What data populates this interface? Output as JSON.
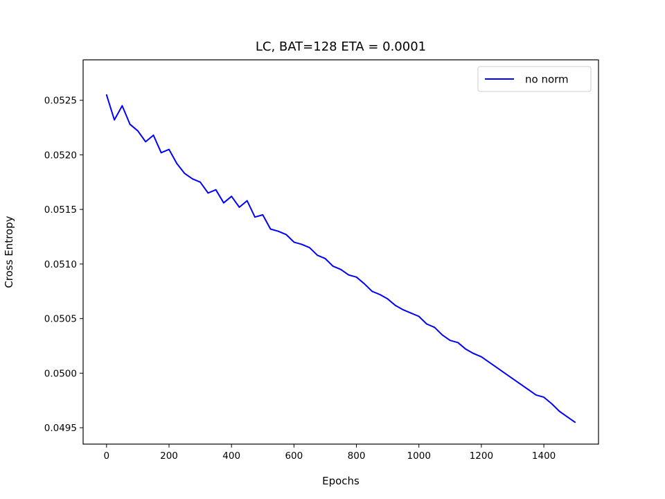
{
  "chart_data": {
    "type": "line",
    "title": "LC, BAT=128 ETA = 0.0001",
    "xlabel": "Epochs",
    "ylabel": "Cross Entropy",
    "xlim": [
      -75,
      1575
    ],
    "ylim": [
      0.04935,
      0.05287
    ],
    "xticks": [
      0,
      200,
      400,
      600,
      800,
      1000,
      1200,
      1400
    ],
    "xtick_labels": [
      "0",
      "200",
      "400",
      "600",
      "800",
      "1000",
      "1200",
      "1400"
    ],
    "yticks": [
      0.0495,
      0.05,
      0.0505,
      0.051,
      0.0515,
      0.052,
      0.0525
    ],
    "ytick_labels": [
      "0.0495",
      "0.0500",
      "0.0505",
      "0.0510",
      "0.0515",
      "0.0520",
      "0.0525"
    ],
    "grid": false,
    "legend_position": "top-right",
    "series": [
      {
        "name": "no norm",
        "color": "#0000ff",
        "x": [
          0,
          25,
          50,
          75,
          100,
          125,
          150,
          175,
          200,
          225,
          250,
          275,
          300,
          325,
          350,
          375,
          400,
          425,
          450,
          475,
          500,
          525,
          550,
          575,
          600,
          625,
          650,
          675,
          700,
          725,
          750,
          775,
          800,
          825,
          850,
          875,
          900,
          925,
          950,
          975,
          1000,
          1025,
          1050,
          1075,
          1100,
          1125,
          1150,
          1175,
          1200,
          1225,
          1250,
          1275,
          1300,
          1325,
          1350,
          1375,
          1400,
          1425,
          1450,
          1475,
          1500
        ],
        "y": [
          0.05255,
          0.05232,
          0.05245,
          0.05228,
          0.05222,
          0.05212,
          0.05218,
          0.05202,
          0.05205,
          0.05192,
          0.05183,
          0.05178,
          0.05175,
          0.05165,
          0.05168,
          0.05156,
          0.05162,
          0.05152,
          0.05158,
          0.05143,
          0.05145,
          0.05132,
          0.0513,
          0.05127,
          0.0512,
          0.05118,
          0.05115,
          0.05108,
          0.05105,
          0.05098,
          0.05095,
          0.0509,
          0.05088,
          0.05082,
          0.05075,
          0.05072,
          0.05068,
          0.05062,
          0.05058,
          0.05055,
          0.05052,
          0.05045,
          0.05042,
          0.05035,
          0.0503,
          0.05028,
          0.05022,
          0.05018,
          0.05015,
          0.0501,
          0.05005,
          0.05,
          0.04995,
          0.0499,
          0.04985,
          0.0498,
          0.04978,
          0.04972,
          0.04965,
          0.0496,
          0.04955
        ]
      }
    ]
  }
}
